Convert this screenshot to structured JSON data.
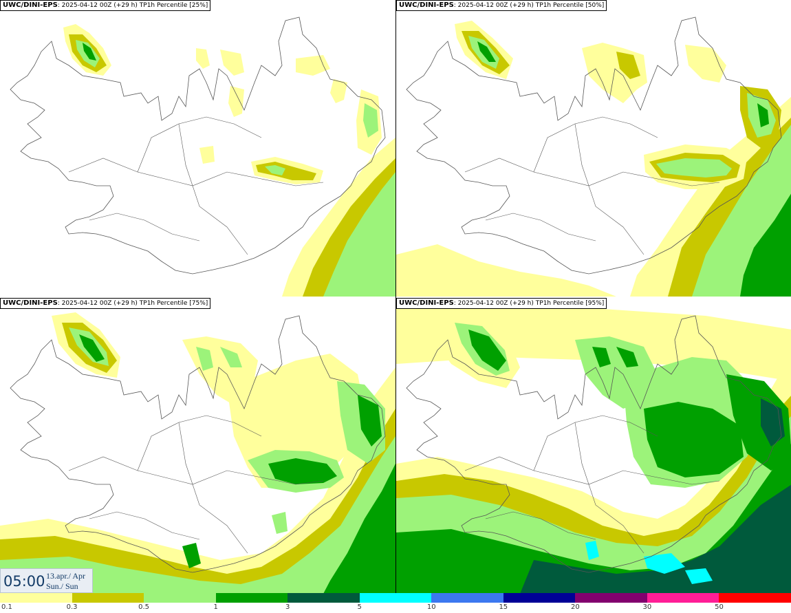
{
  "panels": [
    {
      "model": "UWC/DINI-EPS",
      "run": "2025-04-12 00Z (+29 h)",
      "field": "TP1h Percentile [25%]",
      "percentile": 25
    },
    {
      "model": "UWC/DINI-EPS",
      "run": "2025-04-12 00Z (+29 h)",
      "field": "TP1h Percentile [50%]",
      "percentile": 50
    },
    {
      "model": "UWC/DINI-EPS",
      "run": "2025-04-12 00Z (+29 h)",
      "field": "TP1h Percentile [75%]",
      "percentile": 75
    },
    {
      "model": "UWC/DINI-EPS",
      "run": "2025-04-12 00Z (+29 h)",
      "field": "TP1h Percentile [95%]",
      "percentile": 95
    }
  ],
  "valid_time": {
    "time": "05:00",
    "date": "13.apr./ Apr",
    "day": "Sun./ Sun"
  },
  "colorbar": {
    "labels": [
      "0.1",
      "0.3",
      "0.5",
      "1",
      "3",
      "5",
      "10",
      "15",
      "20",
      "30",
      "50"
    ],
    "colors": [
      "#ffff9c",
      "#c8c800",
      "#9cf37a",
      "#00a000",
      "#005a3c",
      "#00ffff",
      "#3c78f0",
      "#000096",
      "#82006e",
      "#ff1e96",
      "#ff0000"
    ]
  },
  "colors": {
    "levels": {
      "0.1": "#ffff9c",
      "0.3": "#c8c800",
      "0.5": "#9cf37a",
      "1": "#00a000",
      "3": "#005a3c",
      "5": "#00ffff"
    },
    "coastline": "#555555"
  }
}
